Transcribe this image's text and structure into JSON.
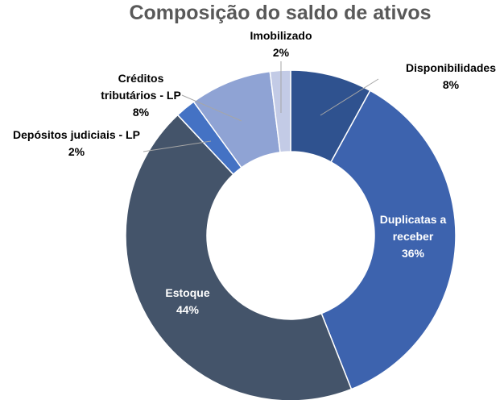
{
  "chart_data": {
    "type": "donut",
    "title": "Composição do saldo de ativos",
    "categories": [
      "Disponibilidades",
      "Duplicatas a receber",
      "Estoque",
      "Depósitos judiciais - LP",
      "Créditos tributários - LP",
      "Imobilizado"
    ],
    "values": [
      8,
      36,
      44,
      2,
      8,
      2
    ],
    "value_labels": [
      "8%",
      "36%",
      "44%",
      "2%",
      "8%",
      "2%"
    ],
    "colors": [
      "#2f528f",
      "#3d63ae",
      "#44546a",
      "#4472c4",
      "#8fa3d4",
      "#c3cbe6"
    ]
  }
}
